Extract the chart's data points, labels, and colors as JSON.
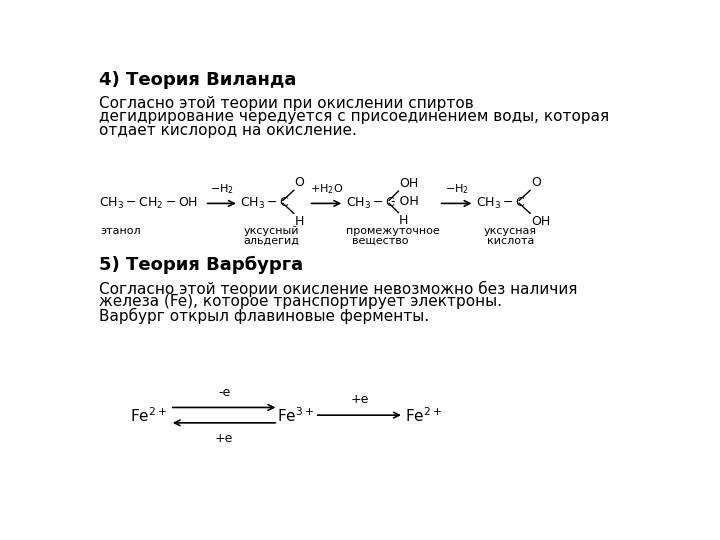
{
  "title1": "4) Теория Виланда",
  "title2": "5) Теория Варбурга",
  "para1_l1": "Согласно этой теории при окислении спиртов",
  "para1_l2": "дегидрирование чередуется с присоединением воды, которая",
  "para1_l3": "отдает кислород на окисление.",
  "para2_l1": "Согласно этой теории окисление невозможно без наличия",
  "para2_l2": "железа (Fe), которое транспортирует электроны.",
  "para2_l3": "Варбург открыл флавиновые ферменты.",
  "bg_color": "#ffffff",
  "text_color": "#000000",
  "fontsize_title": 13,
  "fontsize_body": 11,
  "fontsize_chem": 9,
  "fontsize_fe": 11
}
